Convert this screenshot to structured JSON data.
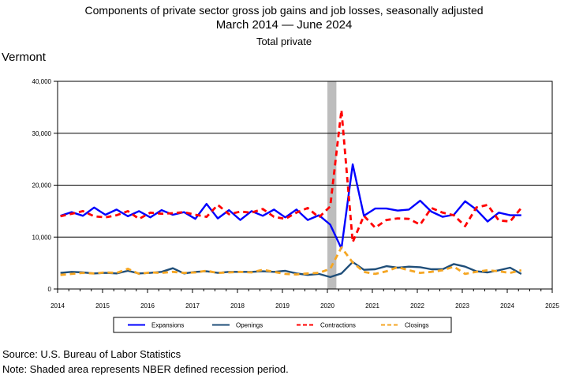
{
  "header": {
    "title_line1": "Components of private sector gross job gains and job losses, seasonally adjusted",
    "title_line2": "March 2014 — June 2024",
    "title_line3": "Total private",
    "region": "Vermont"
  },
  "footer": {
    "source": "Source: U.S. Bureau of Labor Statistics",
    "note": "Note: Shaded area represents NBER defined recession period."
  },
  "chart_data": {
    "type": "line",
    "x_tick_labels": [
      "2014",
      "2015",
      "2016",
      "2017",
      "2018",
      "2019",
      "2020",
      "2021",
      "2022",
      "2023",
      "2024",
      "2025"
    ],
    "y_tick_labels": [
      "0",
      "10,000",
      "20,000",
      "30,000",
      "40,000"
    ],
    "xlim": [
      2014,
      2025
    ],
    "ylim": [
      0,
      40000
    ],
    "grid": "horizontal",
    "legend_position": "bottom",
    "recession_shading": {
      "start": 2020.0,
      "end": 2020.2,
      "color": "#bdbdbd"
    },
    "quarters": [
      "2014-Q1",
      "2014-Q2",
      "2014-Q3",
      "2014-Q4",
      "2015-Q1",
      "2015-Q2",
      "2015-Q3",
      "2015-Q4",
      "2016-Q1",
      "2016-Q2",
      "2016-Q3",
      "2016-Q4",
      "2017-Q1",
      "2017-Q2",
      "2017-Q3",
      "2017-Q4",
      "2018-Q1",
      "2018-Q2",
      "2018-Q3",
      "2018-Q4",
      "2019-Q1",
      "2019-Q2",
      "2019-Q3",
      "2019-Q4",
      "2020-Q1",
      "2020-Q2",
      "2020-Q3",
      "2020-Q4",
      "2021-Q1",
      "2021-Q2",
      "2021-Q3",
      "2021-Q4",
      "2022-Q1",
      "2022-Q2",
      "2022-Q3",
      "2022-Q4",
      "2023-Q1",
      "2023-Q2",
      "2023-Q3",
      "2023-Q4",
      "2024-Q1",
      "2024-Q2"
    ],
    "series": [
      {
        "name": "Expansions",
        "color": "#0000ff",
        "dash": "solid",
        "values": [
          14100,
          14800,
          14100,
          15700,
          14300,
          15300,
          14000,
          15000,
          13800,
          15200,
          14300,
          14800,
          13500,
          16400,
          13600,
          15200,
          13300,
          15000,
          14100,
          15300,
          13800,
          15300,
          13300,
          14200,
          12400,
          7800,
          24000,
          14100,
          15500,
          15500,
          15100,
          15300,
          17000,
          14900,
          13900,
          14300,
          16900,
          15300,
          13000,
          14700,
          14200,
          14200
        ]
      },
      {
        "name": "Openings",
        "color": "#1f4e79",
        "dash": "solid",
        "values": [
          3100,
          3300,
          3200,
          3000,
          3100,
          3000,
          3500,
          3000,
          3100,
          3300,
          4000,
          3000,
          3300,
          3400,
          3100,
          3300,
          3300,
          3300,
          3400,
          3300,
          3500,
          3000,
          2700,
          2900,
          2300,
          3000,
          5200,
          3700,
          3800,
          4400,
          4100,
          4300,
          4200,
          3800,
          3800,
          4800,
          4300,
          3400,
          3200,
          3600,
          4100,
          2900
        ]
      },
      {
        "name": "Contractions",
        "color": "#ff0000",
        "dash": "dashed",
        "values": [
          14000,
          14500,
          15000,
          14000,
          13800,
          14200,
          15000,
          13500,
          14700,
          14500,
          14600,
          14800,
          14300,
          13900,
          16200,
          14400,
          14900,
          14700,
          15400,
          13900,
          13500,
          14700,
          15600,
          13800,
          15900,
          34500,
          9000,
          14100,
          11800,
          13300,
          13600,
          13500,
          12400,
          15600,
          14700,
          14200,
          12100,
          15700,
          16200,
          13200,
          13000,
          15600
        ]
      },
      {
        "name": "Closings",
        "color": "#f5a623",
        "dash": "dashed",
        "values": [
          2700,
          2900,
          3100,
          3000,
          3200,
          3100,
          3900,
          2900,
          3200,
          3100,
          3300,
          3100,
          3200,
          3500,
          3100,
          3200,
          3300,
          3200,
          3700,
          3300,
          2900,
          2800,
          3000,
          3100,
          3900,
          8000,
          5100,
          3300,
          2900,
          3400,
          4200,
          3600,
          3100,
          3300,
          3600,
          4300,
          2900,
          3300,
          3600,
          3400,
          3100,
          3600
        ]
      }
    ]
  }
}
